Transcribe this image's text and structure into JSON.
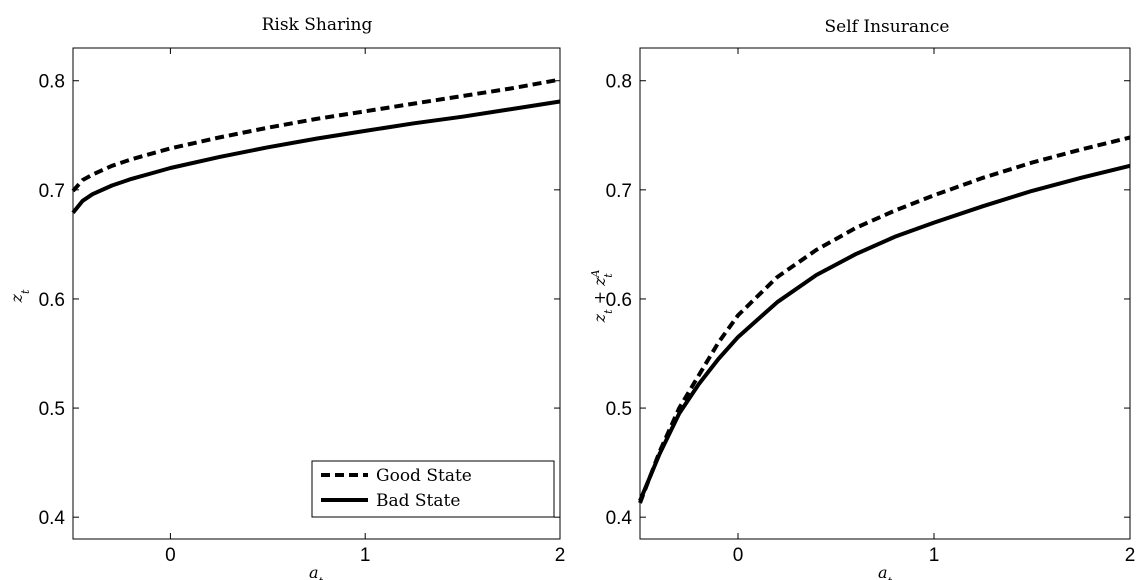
{
  "chart_data": [
    {
      "type": "line",
      "title": "Risk Sharing",
      "xlabel": "a_t",
      "ylabel": "z_t",
      "xlim": [
        -0.5,
        2
      ],
      "ylim": [
        0.38,
        0.83
      ],
      "xticks": [
        "0",
        "1",
        "2"
      ],
      "xtick_values": [
        0,
        1,
        2
      ],
      "yticks": [
        "0.4",
        "0.5",
        "0.6",
        "0.7",
        "0.8"
      ],
      "ytick_values": [
        0.4,
        0.5,
        0.6,
        0.7,
        0.8
      ],
      "legend": "bottom-right",
      "series": [
        {
          "name": "Good State",
          "style": "dashed",
          "x": [
            -0.5,
            -0.45,
            -0.4,
            -0.3,
            -0.2,
            -0.1,
            0,
            0.25,
            0.5,
            0.75,
            1,
            1.25,
            1.5,
            1.75,
            2
          ],
          "y": [
            0.699,
            0.709,
            0.714,
            0.722,
            0.728,
            0.733,
            0.738,
            0.748,
            0.757,
            0.765,
            0.772,
            0.779,
            0.786,
            0.793,
            0.801
          ]
        },
        {
          "name": "Bad State",
          "style": "solid",
          "x": [
            -0.5,
            -0.45,
            -0.4,
            -0.3,
            -0.2,
            -0.1,
            0,
            0.25,
            0.5,
            0.75,
            1,
            1.25,
            1.5,
            1.75,
            2
          ],
          "y": [
            0.679,
            0.69,
            0.696,
            0.704,
            0.71,
            0.715,
            0.72,
            0.73,
            0.739,
            0.747,
            0.754,
            0.761,
            0.767,
            0.774,
            0.781
          ]
        }
      ]
    },
    {
      "type": "line",
      "title": "Self Insurance",
      "xlabel": "a_t",
      "ylabel": "z_t + z_t^A",
      "xlim": [
        -0.5,
        2
      ],
      "ylim": [
        0.38,
        0.83
      ],
      "xticks": [
        "0",
        "1",
        "2"
      ],
      "xtick_values": [
        0,
        1,
        2
      ],
      "yticks": [
        "0.4",
        "0.5",
        "0.6",
        "0.7",
        "0.8"
      ],
      "ytick_values": [
        0.4,
        0.5,
        0.6,
        0.7,
        0.8
      ],
      "series": [
        {
          "name": "Good State",
          "style": "dashed",
          "x": [
            -0.5,
            -0.4,
            -0.3,
            -0.2,
            -0.1,
            0,
            0.2,
            0.4,
            0.6,
            0.8,
            1,
            1.25,
            1.5,
            1.75,
            2
          ],
          "y": [
            0.413,
            0.46,
            0.5,
            0.53,
            0.56,
            0.585,
            0.62,
            0.645,
            0.665,
            0.681,
            0.695,
            0.711,
            0.725,
            0.737,
            0.748
          ]
        },
        {
          "name": "Bad State",
          "style": "solid",
          "x": [
            -0.5,
            -0.4,
            -0.3,
            -0.2,
            -0.1,
            0,
            0.2,
            0.4,
            0.6,
            0.8,
            1,
            1.25,
            1.5,
            1.75,
            2
          ],
          "y": [
            0.415,
            0.458,
            0.495,
            0.522,
            0.545,
            0.565,
            0.597,
            0.622,
            0.641,
            0.657,
            0.67,
            0.685,
            0.699,
            0.711,
            0.722
          ]
        }
      ]
    }
  ]
}
